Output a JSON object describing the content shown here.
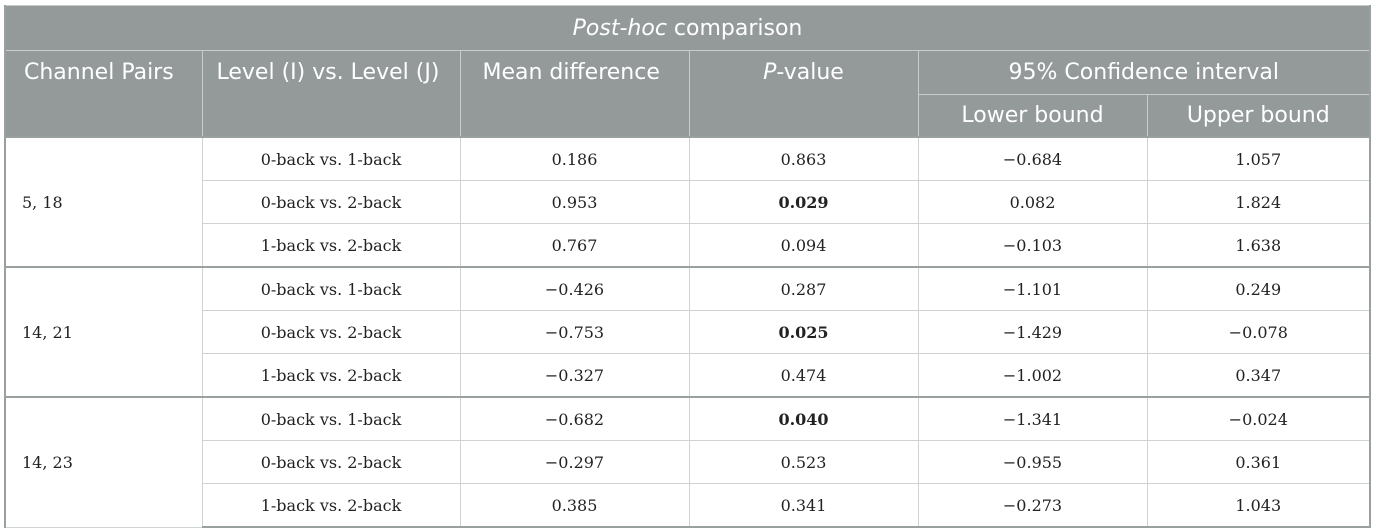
{
  "table": {
    "title_italic": "Post-hoc",
    "title_rest": " comparison",
    "headers": {
      "channel_pairs": "Channel Pairs",
      "levels": "Level (I) vs. Level (J)",
      "mean_difference": "Mean difference",
      "pvalue_italic": "P",
      "pvalue_rest": "-value",
      "confidence_interval": "95% Confidence interval",
      "lower_bound": "Lower bound",
      "upper_bound": "Upper bound"
    },
    "groups": [
      {
        "pair": "5, 18",
        "rows": [
          {
            "comparison": "0-back vs. 1-back",
            "mean": "0.186",
            "p": "0.863",
            "p_bold": false,
            "lower": "−0.684",
            "upper": "1.057"
          },
          {
            "comparison": "0-back vs. 2-back",
            "mean": "0.953",
            "p": "0.029",
            "p_bold": true,
            "lower": "0.082",
            "upper": "1.824"
          },
          {
            "comparison": "1-back vs. 2-back",
            "mean": "0.767",
            "p": "0.094",
            "p_bold": false,
            "lower": "−0.103",
            "upper": "1.638"
          }
        ]
      },
      {
        "pair": "14, 21",
        "rows": [
          {
            "comparison": "0-back vs. 1-back",
            "mean": "−0.426",
            "p": "0.287",
            "p_bold": false,
            "lower": "−1.101",
            "upper": "0.249"
          },
          {
            "comparison": "0-back vs. 2-back",
            "mean": "−0.753",
            "p": "0.025",
            "p_bold": true,
            "lower": "−1.429",
            "upper": "−0.078"
          },
          {
            "comparison": "1-back vs. 2-back",
            "mean": "−0.327",
            "p": "0.474",
            "p_bold": false,
            "lower": "−1.002",
            "upper": "0.347"
          }
        ]
      },
      {
        "pair": "14, 23",
        "rows": [
          {
            "comparison": "0-back vs. 1-back",
            "mean": "−0.682",
            "p": "0.040",
            "p_bold": true,
            "lower": "−1.341",
            "upper": "−0.024"
          },
          {
            "comparison": "0-back vs. 2-back",
            "mean": "−0.297",
            "p": "0.523",
            "p_bold": false,
            "lower": "−0.955",
            "upper": "0.361"
          },
          {
            "comparison": "1-back vs. 2-back",
            "mean": "0.385",
            "p": "0.341",
            "p_bold": false,
            "lower": "−0.273",
            "upper": "1.043"
          }
        ]
      }
    ],
    "colors": {
      "header_background": "#939a99",
      "header_text": "#ffffff"
    }
  }
}
